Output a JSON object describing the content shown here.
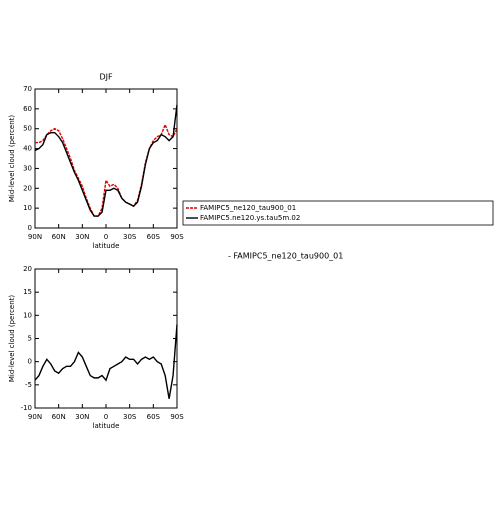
{
  "chart_data": [
    {
      "type": "line",
      "title": "DJF",
      "ylabel": "Mid-level cloud (percent)",
      "xlabel": "latitude",
      "x": [
        90,
        85,
        80,
        75,
        70,
        65,
        60,
        55,
        50,
        45,
        40,
        35,
        30,
        25,
        20,
        15,
        10,
        5,
        0,
        -5,
        -10,
        -15,
        -20,
        -25,
        -30,
        -35,
        -40,
        -45,
        -50,
        -55,
        -60,
        -65,
        -70,
        -75,
        -80,
        -85,
        -90
      ],
      "series": [
        {
          "name": "FAMIPC5_ne120_tau900_01",
          "color": "#e00000",
          "style": "dashed",
          "values": [
            43,
            43,
            44,
            47,
            49,
            50,
            49,
            45,
            40,
            35,
            29,
            25,
            21,
            15,
            10,
            6,
            6,
            10,
            24,
            21,
            22,
            20,
            15,
            13,
            12,
            11,
            14,
            22,
            33,
            40,
            44,
            46,
            47,
            52,
            47,
            46,
            50
          ]
        },
        {
          "name": "FAMIPC5.ne120.ys.tau5m.02",
          "color": "#000000",
          "style": "solid",
          "values": [
            39,
            40,
            42,
            47,
            48,
            48,
            46,
            43,
            38,
            33,
            28,
            24,
            19,
            14,
            9,
            6,
            6,
            8,
            19,
            19,
            20,
            19,
            15,
            13,
            12,
            11,
            13,
            21,
            32,
            40,
            43,
            44,
            47,
            46,
            44,
            46,
            62
          ]
        }
      ],
      "xlim": [
        90,
        -90
      ],
      "xticks": [
        {
          "value": 90,
          "label": "90N"
        },
        {
          "value": 60,
          "label": "60N"
        },
        {
          "value": 30,
          "label": "30N"
        },
        0,
        {
          "value": -30,
          "label": "30S"
        },
        {
          "value": -60,
          "label": "60S"
        },
        {
          "value": -90,
          "label": "90S"
        }
      ],
      "ylim": [
        0,
        70
      ],
      "yticks": [
        0,
        10,
        20,
        30,
        40,
        50,
        60,
        70
      ],
      "legend": "right",
      "annotation": "- FAMIPC5_ne120_tau900_01"
    },
    {
      "type": "line",
      "ylabel": "Mid-level cloud (percent)",
      "xlabel": "latitude",
      "x": [
        90,
        85,
        80,
        75,
        70,
        65,
        60,
        55,
        50,
        45,
        40,
        35,
        30,
        25,
        20,
        15,
        10,
        5,
        0,
        -5,
        -10,
        -15,
        -20,
        -25,
        -30,
        -35,
        -40,
        -45,
        -50,
        -55,
        -60,
        -65,
        -70,
        -75,
        -80,
        -85,
        -90
      ],
      "series": [
        {
          "color": "#000000",
          "style": "solid",
          "values": [
            -4,
            -3,
            -1,
            0.5,
            -0.5,
            -2,
            -2.5,
            -1.5,
            -1,
            -1,
            0,
            2,
            1,
            -1,
            -3,
            -3.5,
            -3.5,
            -3,
            -4,
            -1.5,
            -1,
            -0.5,
            0,
            1,
            0.5,
            0.5,
            -0.5,
            0.5,
            1,
            0.5,
            1,
            0,
            -0.5,
            -3,
            -8,
            -3,
            8
          ]
        }
      ],
      "xlim": [
        90,
        -90
      ],
      "xticks": [
        {
          "value": 90,
          "label": "90N"
        },
        {
          "value": 60,
          "label": "60N"
        },
        {
          "value": 30,
          "label": "30N"
        },
        0,
        {
          "value": -30,
          "label": "30S"
        },
        {
          "value": -60,
          "label": "60S"
        },
        {
          "value": -90,
          "label": "90S"
        }
      ],
      "ylim": [
        -10,
        20
      ],
      "yticks": [
        -10,
        -5,
        0,
        5,
        10,
        15,
        20
      ]
    }
  ]
}
